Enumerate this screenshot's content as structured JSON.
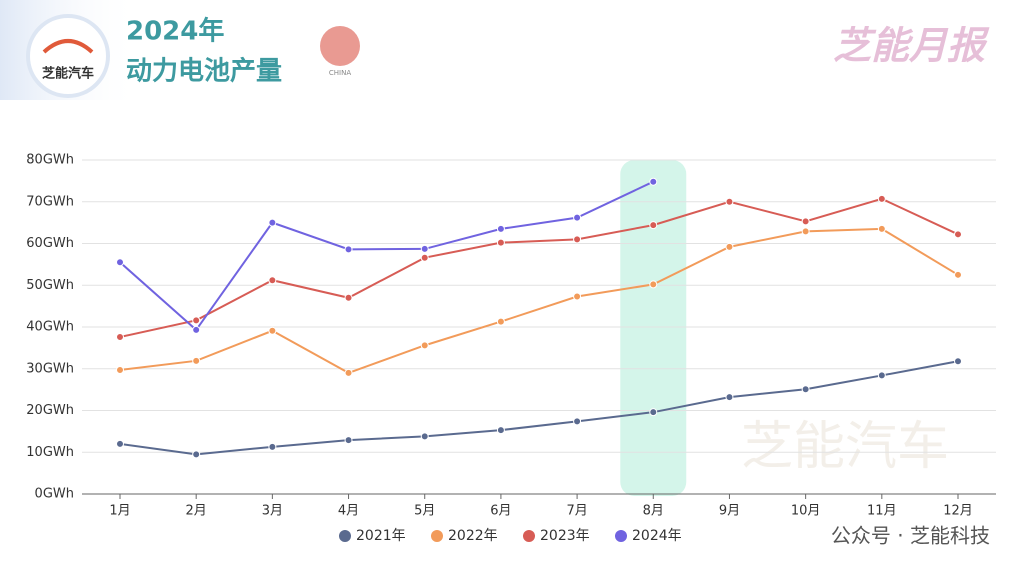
{
  "brand": "芝能汽车",
  "badge": "CHINA",
  "report": "芝能月报",
  "watermark": "芝能汽车",
  "footer": "公众号 · 芝能科技",
  "chart_data": {
    "type": "line",
    "title": "2024年",
    "subtitle": "动力电池产量",
    "categories": [
      "1月",
      "2月",
      "3月",
      "4月",
      "5月",
      "6月",
      "7月",
      "8月",
      "9月",
      "10月",
      "11月",
      "12月"
    ],
    "series": [
      {
        "name": "2021年",
        "color": "#5a6a8f",
        "values": [
          12,
          9.5,
          11.3,
          12.9,
          13.8,
          15.3,
          17.4,
          19.6,
          23.2,
          25.1,
          28.4,
          31.8
        ]
      },
      {
        "name": "2022年",
        "color": "#f29b5a",
        "values": [
          29.7,
          31.9,
          39.1,
          29.0,
          35.6,
          41.3,
          47.3,
          50.2,
          59.2,
          62.9,
          63.5,
          52.5
        ]
      },
      {
        "name": "2023年",
        "color": "#d75c55",
        "values": [
          37.6,
          41.6,
          51.2,
          47.0,
          56.6,
          60.2,
          61.0,
          64.4,
          70.0,
          65.3,
          70.7,
          62.2
        ]
      },
      {
        "name": "2024年",
        "color": "#7063e0",
        "values": [
          55.5,
          39.3,
          65.0,
          58.6,
          58.7,
          63.5,
          66.2,
          74.8,
          null,
          null,
          null,
          null
        ]
      }
    ],
    "ylim": [
      0,
      80
    ],
    "yticks": [
      {
        "value": 0,
        "label": "0GWh"
      },
      {
        "value": 10,
        "label": "10GWh"
      },
      {
        "value": 20,
        "label": "20GWh"
      },
      {
        "value": 30,
        "label": "30GWh"
      },
      {
        "value": 40,
        "label": "40GWh"
      },
      {
        "value": 50,
        "label": "50GWh"
      },
      {
        "value": 60,
        "label": "60GWh"
      },
      {
        "value": 70,
        "label": "70GWh"
      },
      {
        "value": 80,
        "label": "80GWh"
      }
    ],
    "grid": true,
    "legend": "bottom",
    "highlight": "8月"
  }
}
